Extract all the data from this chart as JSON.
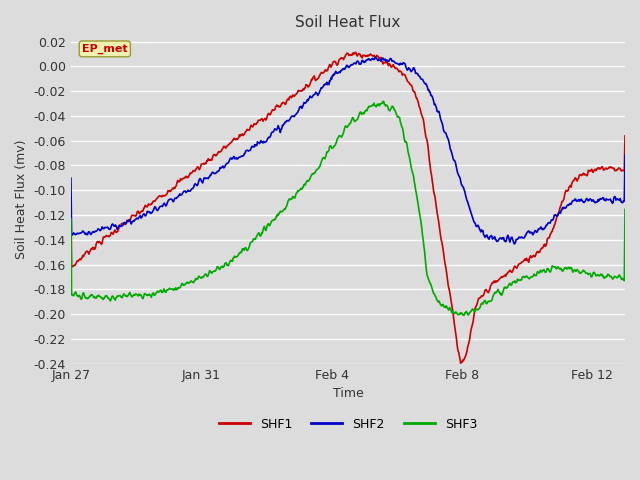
{
  "title": "Soil Heat Flux",
  "xlabel": "Time",
  "ylabel": "Soil Heat Flux (mv)",
  "ylim": [
    -0.24,
    0.025
  ],
  "yticks": [
    0.02,
    0.0,
    -0.02,
    -0.04,
    -0.06,
    -0.08,
    -0.1,
    -0.12,
    -0.14,
    -0.16,
    -0.18,
    -0.2,
    -0.22,
    -0.24
  ],
  "background_color": "#dcdcdc",
  "plot_bg_color": "#dcdcdc",
  "grid_color": "#ffffff",
  "annotation_text": "EP_met",
  "annotation_color": "#cc0000",
  "annotation_bg": "#f0f0b0",
  "annotation_border": "#999933",
  "series": [
    {
      "name": "SHF1",
      "color": "#cc0000",
      "linewidth": 1.2
    },
    {
      "name": "SHF2",
      "color": "#0000cc",
      "linewidth": 1.2
    },
    {
      "name": "SHF3",
      "color": "#00aa00",
      "linewidth": 1.2
    }
  ],
  "x_tick_labels": [
    "Jan 27",
    "Jan 31",
    "Feb 4",
    "Feb 8",
    "Feb 12"
  ],
  "x_tick_positions": [
    0,
    4,
    8,
    12,
    16
  ],
  "figsize": [
    6.4,
    4.8
  ],
  "dpi": 100,
  "shf1_knots": [
    0,
    0.5,
    1.5,
    3,
    5,
    6.5,
    7.5,
    8.2,
    8.7,
    9.0,
    9.3,
    9.7,
    10.0,
    10.3,
    10.6,
    10.9,
    11.1,
    11.4,
    11.7,
    12.0,
    12.5,
    13.5,
    14.5,
    15.5,
    16.5
  ],
  "shf1_vals": [
    -0.163,
    -0.15,
    -0.13,
    -0.1,
    -0.06,
    -0.03,
    -0.01,
    0.005,
    0.01,
    0.01,
    0.008,
    0.003,
    -0.002,
    -0.01,
    -0.025,
    -0.055,
    -0.095,
    -0.145,
    -0.195,
    -0.24,
    -0.19,
    -0.165,
    -0.145,
    -0.09,
    -0.082
  ],
  "shf2_knots": [
    0,
    0.5,
    1.5,
    3,
    5,
    6.5,
    7.5,
    8.5,
    9.0,
    9.3,
    9.6,
    9.9,
    10.2,
    10.5,
    11.0,
    11.5,
    12.0,
    12.5,
    13.0,
    13.5,
    14.5,
    15.5,
    16.5
  ],
  "shf2_vals": [
    -0.135,
    -0.134,
    -0.128,
    -0.11,
    -0.075,
    -0.048,
    -0.022,
    0.0,
    0.004,
    0.005,
    0.005,
    0.004,
    0.001,
    -0.003,
    -0.02,
    -0.055,
    -0.095,
    -0.13,
    -0.14,
    -0.14,
    -0.13,
    -0.108,
    -0.108
  ],
  "shf3_knots": [
    0,
    1,
    2,
    3,
    4,
    5,
    6,
    6.5,
    7.0,
    7.5,
    8.0,
    8.3,
    8.6,
    8.9,
    9.2,
    9.5,
    9.8,
    10.1,
    10.4,
    10.7,
    11.0,
    11.5,
    12.0,
    13.0,
    14.0,
    15.0,
    16.0,
    16.5
  ],
  "shf3_vals": [
    -0.185,
    -0.186,
    -0.185,
    -0.18,
    -0.17,
    -0.155,
    -0.13,
    -0.115,
    -0.1,
    -0.085,
    -0.065,
    -0.055,
    -0.045,
    -0.038,
    -0.032,
    -0.03,
    -0.033,
    -0.045,
    -0.075,
    -0.12,
    -0.175,
    -0.195,
    -0.2,
    -0.185,
    -0.17,
    -0.163,
    -0.168,
    -0.17
  ]
}
